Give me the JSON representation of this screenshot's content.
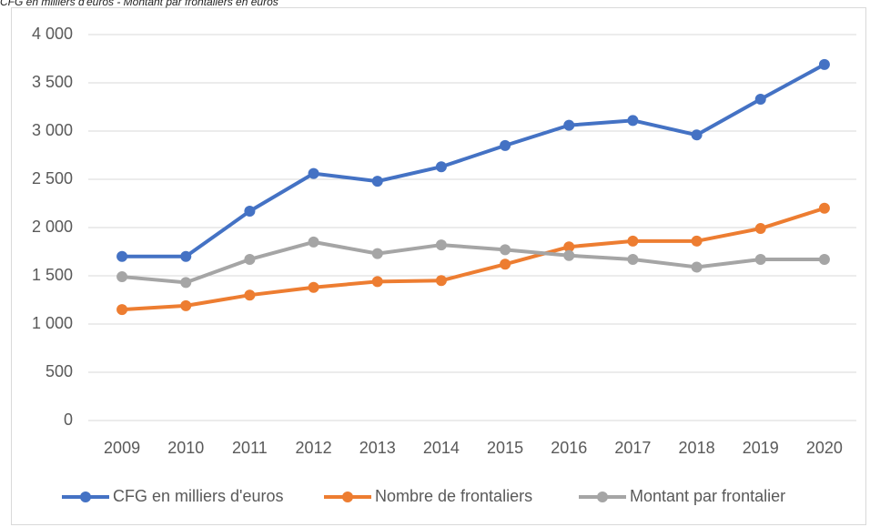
{
  "chart_data": {
    "type": "line",
    "title": "CFG en milliers d'euros - Montant par frontaliers en euros",
    "categories": [
      "2009",
      "2010",
      "2011",
      "2012",
      "2013",
      "2014",
      "2015",
      "2016",
      "2017",
      "2018",
      "2019",
      "2020"
    ],
    "series": [
      {
        "name": "CFG en milliers d'euros",
        "color": "#4472c4",
        "values": [
          1700,
          1700,
          2170,
          2560,
          2480,
          2630,
          2850,
          3060,
          3110,
          2960,
          3330,
          3690
        ]
      },
      {
        "name": "Nombre de frontaliers",
        "color": "#ed7d31",
        "values": [
          1150,
          1190,
          1300,
          1380,
          1440,
          1450,
          1620,
          1800,
          1860,
          1860,
          1990,
          2200
        ]
      },
      {
        "name": "Montant par frontalier",
        "color": "#a5a5a5",
        "values": [
          1490,
          1430,
          1670,
          1850,
          1730,
          1820,
          1770,
          1710,
          1670,
          1590,
          1670,
          1670
        ]
      }
    ],
    "ylim": [
      0,
      4000
    ],
    "yticks": [
      0,
      500,
      {
        "value": 1000,
        "label": "1 000"
      },
      {
        "value": 1500,
        "label": "1 500"
      },
      {
        "value": 2000,
        "label": "2 000"
      },
      {
        "value": 2500,
        "label": "2 500"
      },
      {
        "value": 3000,
        "label": "3 000"
      },
      {
        "value": 3500,
        "label": "3 500"
      },
      {
        "value": 4000,
        "label": "4 000"
      }
    ],
    "grid": true,
    "legend": "bottom"
  }
}
